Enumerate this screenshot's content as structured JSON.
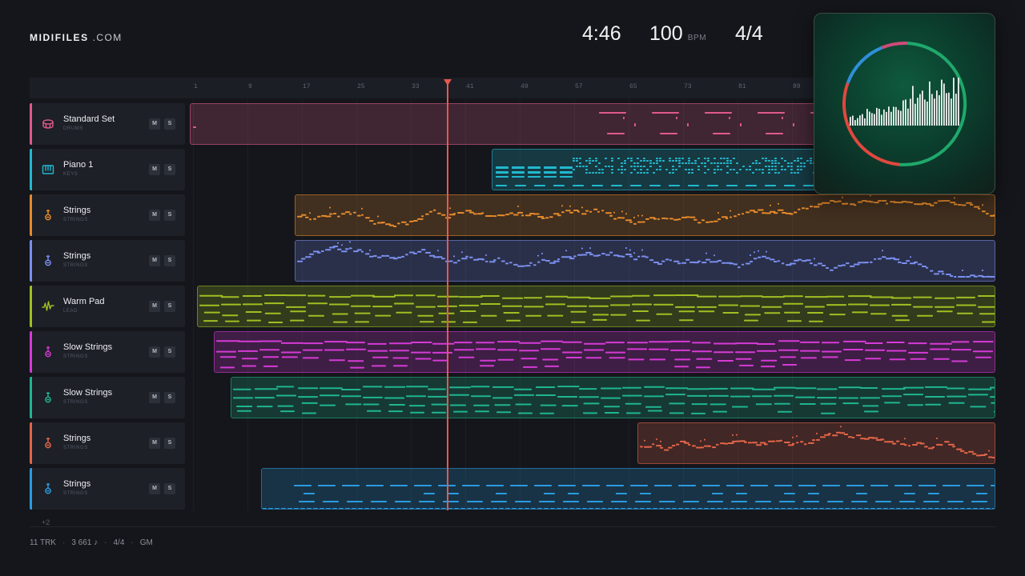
{
  "brand": {
    "name_bold": "MIDIFILES",
    "name_rest": ".COM"
  },
  "header": {
    "time": "4:46",
    "bpm": "100",
    "bpm_unit": "BPM",
    "time_signature": "4/4"
  },
  "ruler": {
    "ticks": [
      "1",
      "9",
      "17",
      "25",
      "33",
      "41",
      "49",
      "57",
      "65",
      "73",
      "81",
      "89"
    ]
  },
  "tracks": [
    {
      "name": "Standard Set",
      "category": "DRUMS",
      "icon": "drum-icon",
      "color": "#e05a8a",
      "mute": "M",
      "solo": "S"
    },
    {
      "name": "Piano 1",
      "category": "KEYS",
      "icon": "piano-icon",
      "color": "#22b8cf",
      "mute": "M",
      "solo": "S"
    },
    {
      "name": "Strings",
      "category": "STRINGS",
      "icon": "guitar-icon",
      "color": "#e58a2c",
      "mute": "M",
      "solo": "S"
    },
    {
      "name": "Strings",
      "category": "STRINGS",
      "icon": "guitar-icon",
      "color": "#7b8ff0",
      "mute": "M",
      "solo": "S"
    },
    {
      "name": "Warm Pad",
      "category": "LEAD",
      "icon": "waveform-icon",
      "color": "#9fbf22",
      "mute": "M",
      "solo": "S"
    },
    {
      "name": "Slow Strings",
      "category": "STRINGS",
      "icon": "guitar-icon",
      "color": "#d63ad6",
      "mute": "M",
      "solo": "S"
    },
    {
      "name": "Slow Strings",
      "category": "STRINGS",
      "icon": "guitar-icon",
      "color": "#1fb58f",
      "mute": "M",
      "solo": "S"
    },
    {
      "name": "Strings",
      "category": "STRINGS",
      "icon": "guitar-icon",
      "color": "#e2654a",
      "mute": "M",
      "solo": "S"
    },
    {
      "name": "Strings",
      "category": "STRINGS",
      "icon": "guitar-icon",
      "color": "#2a9be0",
      "mute": "M",
      "solo": "S"
    }
  ],
  "more_tracks": "+2",
  "footer": {
    "tracks": "11 TRK",
    "notes": "3 661 ♪",
    "meter": "4/4",
    "standard": "GM"
  }
}
